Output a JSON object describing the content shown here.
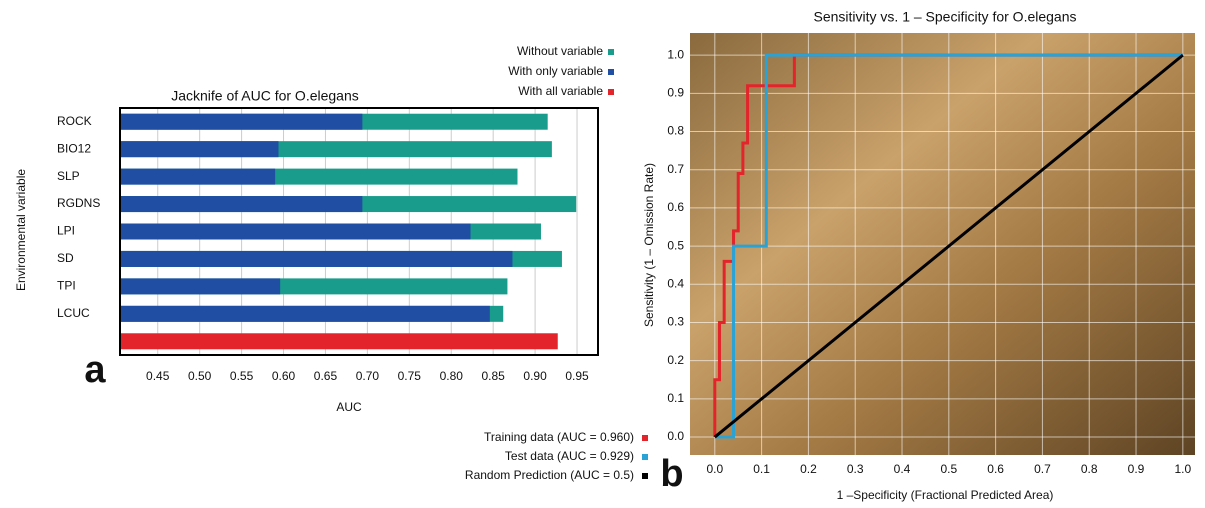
{
  "chart_data": [
    {
      "type": "bar",
      "orientation": "horizontal",
      "title": "Jacknife of AUC for O.elegans",
      "panel_label": "a",
      "x_label": "AUC",
      "y_label": "Environmental variable",
      "categories": [
        "ROCK",
        "BIO12",
        "SLP",
        "RGDNS",
        "LPI",
        "SD",
        "TPI",
        "LCUC",
        null
      ],
      "series": [
        {
          "name": "Without variable",
          "color": "#1a9c8c",
          "values": [
            0.915,
            0.92,
            0.879,
            0.949,
            0.907,
            0.932,
            0.867,
            0.862,
            null
          ]
        },
        {
          "name": "With only variable",
          "color": "#1f4ea3",
          "values": [
            0.694,
            0.594,
            0.59,
            0.694,
            0.823,
            0.873,
            0.596,
            0.846,
            null
          ]
        },
        {
          "name": "With all variable",
          "color": "#e3242b",
          "values": [
            null,
            null,
            null,
            null,
            null,
            null,
            null,
            null,
            0.927
          ]
        }
      ],
      "xlim": [
        0.405,
        0.975
      ],
      "xticks": [
        0.45,
        {
          "value": 0.5,
          "label": "0.50"
        },
        0.55,
        {
          "value": 0.6,
          "label": "0.60"
        },
        0.65,
        {
          "value": 0.7,
          "label": "0.70"
        },
        0.75,
        {
          "value": 0.8,
          "label": "0.80"
        },
        0.85,
        {
          "value": 0.9,
          "label": "0.90"
        },
        0.95
      ],
      "grid": true
    },
    {
      "type": "line",
      "title": "Sensitivity vs. 1 – Specificity for O.elegans",
      "panel_label": "b",
      "x_label": "1 –Specificity (Fractional Predicted Area)",
      "y_label": "Sensitivity (1 – Omission Rate)",
      "series": [
        {
          "name": "Training data (AUC = 0.960)",
          "color": "#e3242b",
          "x": [
            0,
            0,
            0.01,
            0.01,
            0.02,
            0.02,
            0.04,
            0.04,
            0.05,
            0.05,
            0.06,
            0.06,
            0.07,
            0.07,
            0.17,
            0.17,
            1
          ],
          "values": [
            0,
            0.15,
            0.15,
            0.3,
            0.3,
            0.46,
            0.46,
            0.54,
            0.54,
            0.69,
            0.69,
            0.77,
            0.77,
            0.92,
            0.92,
            1,
            1
          ]
        },
        {
          "name": "Test data (AUC = 0.929)",
          "color": "#29a3d6",
          "x": [
            0,
            0.04,
            0.04,
            0.11,
            0.11,
            1
          ],
          "values": [
            0,
            0,
            0.5,
            0.5,
            1,
            1
          ]
        },
        {
          "name": "Random Prediction (AUC = 0.5)",
          "color": "#000000",
          "x": [
            0,
            1
          ],
          "values": [
            0,
            1
          ]
        }
      ],
      "xlim": [
        -0.053,
        1.026
      ],
      "ylim": [
        -0.047,
        1.058
      ],
      "xticks": [
        {
          "value": 0,
          "label": "0.0"
        },
        0.1,
        0.2,
        0.3,
        0.4,
        0.5,
        0.6,
        0.7,
        0.8,
        0.9,
        {
          "value": 1,
          "label": "1.0"
        }
      ],
      "yticks": [
        {
          "value": 0,
          "label": "0.0"
        },
        0.1,
        0.2,
        0.3,
        0.4,
        0.5,
        0.6,
        0.7,
        0.8,
        0.9,
        {
          "value": 1,
          "label": "1.0"
        }
      ],
      "grid": true
    }
  ]
}
